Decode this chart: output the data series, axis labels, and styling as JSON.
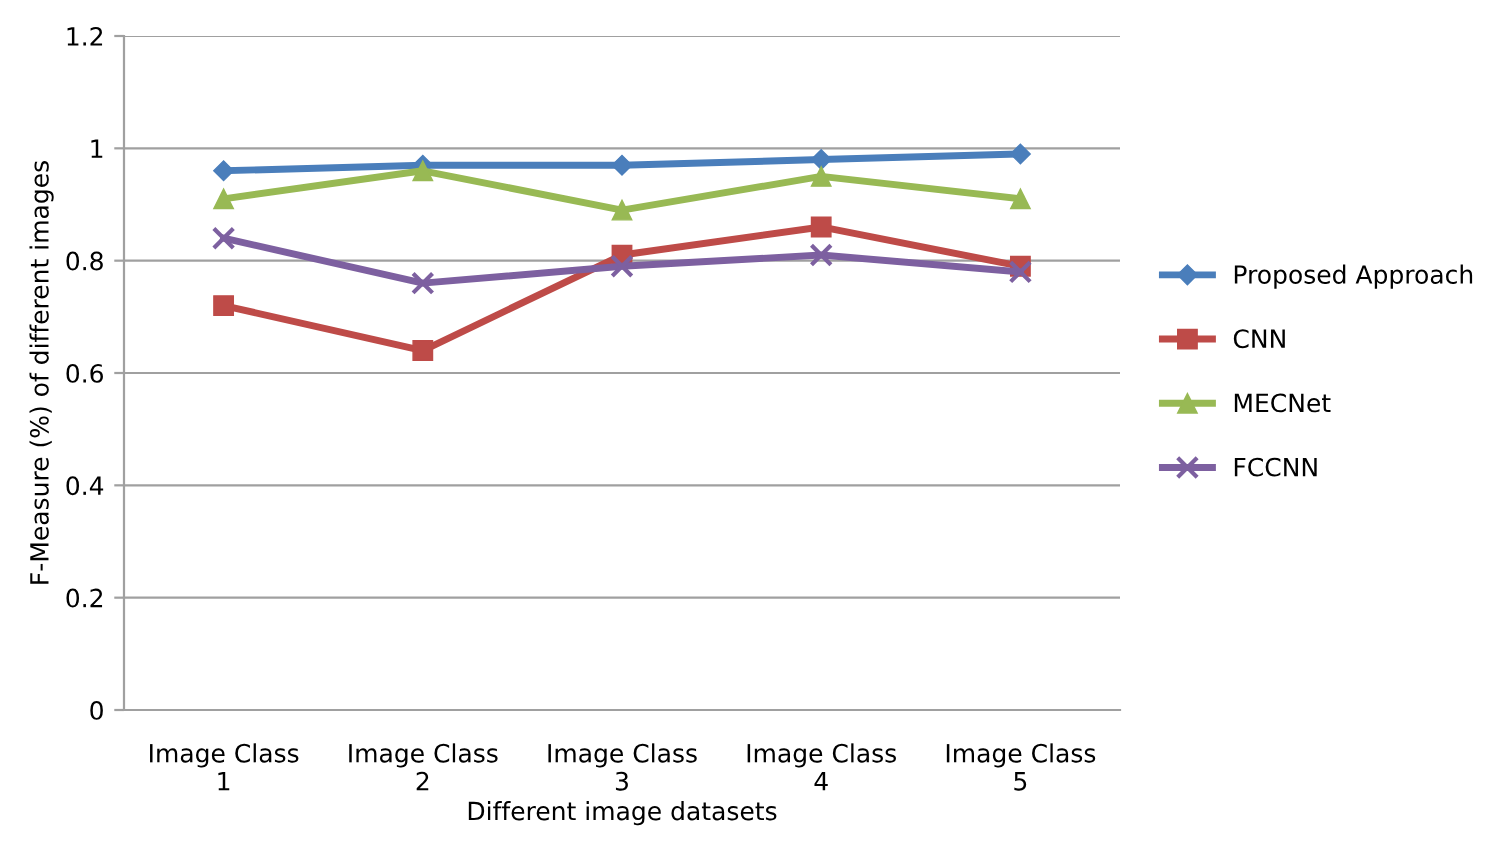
{
  "chart_data": {
    "type": "line",
    "xlabel": "Different image datasets",
    "ylabel": "F-Measure (%) of different images",
    "categories": [
      "Image Class\n1",
      "Image Class\n2",
      "Image Class\n3",
      "Image Class\n4",
      "Image Class\n5"
    ],
    "series": [
      {
        "name": "Proposed Approach",
        "color": "#4a7ebb",
        "marker": "diamond",
        "values": [
          0.96,
          0.97,
          0.97,
          0.98,
          0.99
        ]
      },
      {
        "name": "CNN",
        "color": "#be4b48",
        "marker": "square",
        "values": [
          0.72,
          0.64,
          0.81,
          0.86,
          0.79
        ]
      },
      {
        "name": "MECNet",
        "color": "#98b954",
        "marker": "triangle",
        "values": [
          0.91,
          0.96,
          0.89,
          0.95,
          0.91
        ]
      },
      {
        "name": "FCCNN",
        "color": "#7d60a0",
        "marker": "cross",
        "values": [
          0.84,
          0.76,
          0.79,
          0.81,
          0.78
        ]
      }
    ],
    "ylim": [
      0,
      1.2
    ],
    "yticks": [
      0,
      0.2,
      0.4,
      0.6,
      0.8,
      1,
      1.2
    ],
    "grid": "y",
    "legend": "right",
    "line_style": "solid"
  }
}
